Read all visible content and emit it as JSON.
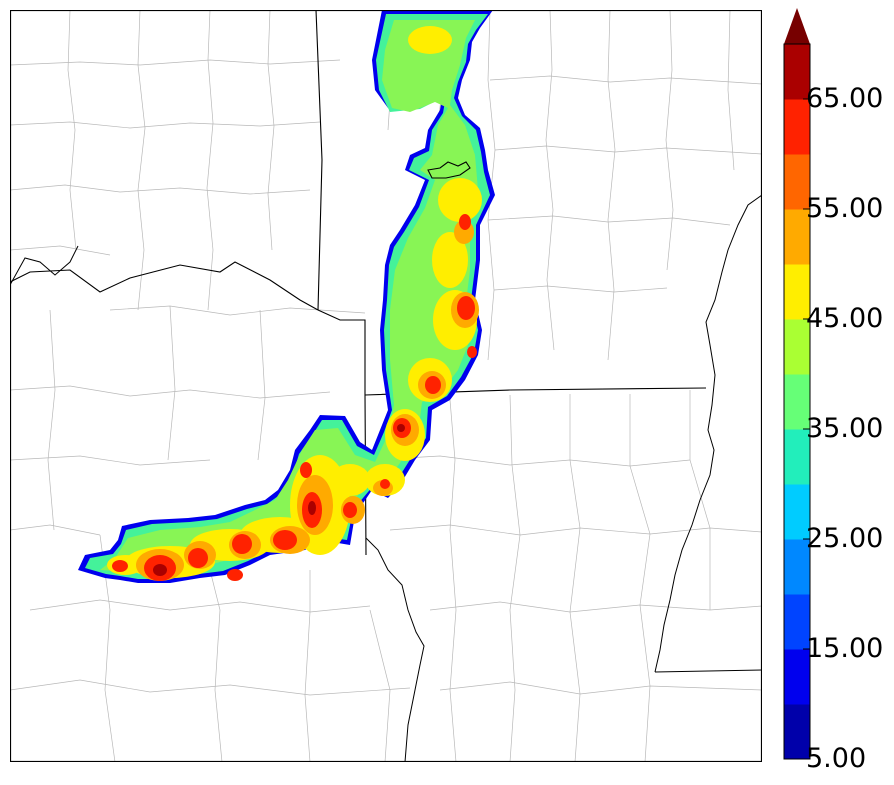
{
  "map": {
    "type": "radar reflectivity map",
    "boundaries": [
      "county lines",
      "state lines",
      "rivers"
    ]
  },
  "colorbar": {
    "min": 5.0,
    "max": 70.0,
    "step": 5.0,
    "extend": "max",
    "levels": [
      {
        "from": 5,
        "to": 10,
        "color": "#0000aa"
      },
      {
        "from": 10,
        "to": 15,
        "color": "#0000ee"
      },
      {
        "from": 15,
        "to": 20,
        "color": "#0044ff"
      },
      {
        "from": 20,
        "to": 25,
        "color": "#0088ff"
      },
      {
        "from": 25,
        "to": 30,
        "color": "#00ccff"
      },
      {
        "from": 30,
        "to": 35,
        "color": "#22eebb"
      },
      {
        "from": 35,
        "to": 40,
        "color": "#66ff77"
      },
      {
        "from": 40,
        "to": 45,
        "color": "#aaff33"
      },
      {
        "from": 45,
        "to": 50,
        "color": "#ffee00"
      },
      {
        "from": 50,
        "to": 55,
        "color": "#ffaa00"
      },
      {
        "from": 55,
        "to": 60,
        "color": "#ff6600"
      },
      {
        "from": 60,
        "to": 65,
        "color": "#ff2200"
      },
      {
        "from": 65,
        "to": 70,
        "color": "#aa0000"
      }
    ],
    "extend_color": "#770000",
    "tick_labels": [
      "5.00",
      "15.00",
      "25.00",
      "35.00",
      "45.00",
      "55.00",
      "65.00"
    ]
  }
}
